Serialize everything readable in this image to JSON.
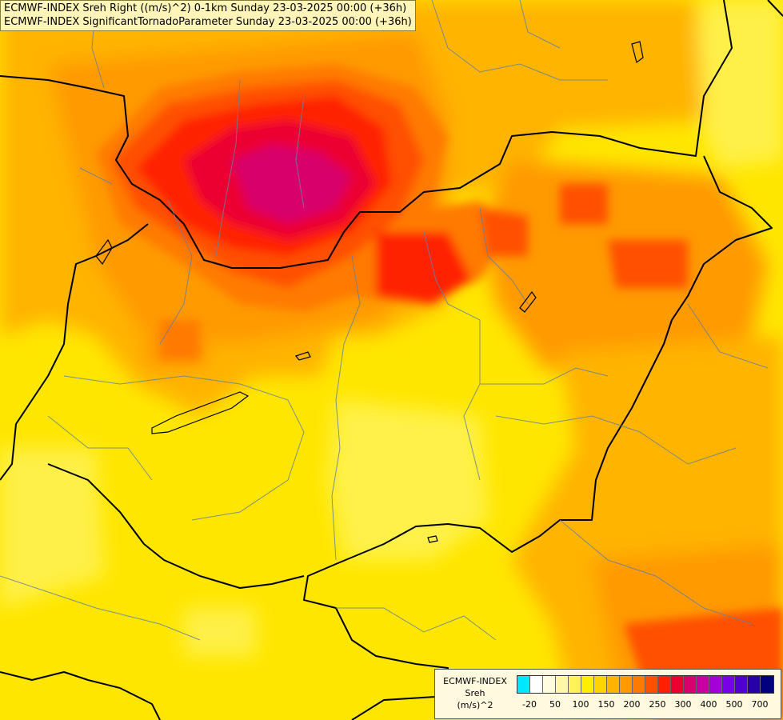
{
  "header": {
    "line1": "ECMWF-INDEX Sreh Right ((m/s)^2) 0-1km Sunday 23-03-2025 00:00 (+36h)",
    "line2": "ECMWF-INDEX SignificantTornadoParameter Sunday 23-03-2025 00:00 (+36h)"
  },
  "legend": {
    "line1": "ECMWF-INDEX",
    "line2": "Sreh",
    "line3": "(m/s)^2",
    "colors": [
      "#00e8ff",
      "#ffffff",
      "#fffce0",
      "#fff7a8",
      "#fff35a",
      "#ffee00",
      "#ffd400",
      "#ffb400",
      "#ff9a00",
      "#ff7a00",
      "#ff5000",
      "#ff2000",
      "#ec0030",
      "#d8006a",
      "#c800a0",
      "#a400d8",
      "#7a00e8",
      "#5000d0",
      "#2800a8",
      "#000080"
    ],
    "ticks": [
      "-20",
      "50",
      "100",
      "150",
      "200",
      "250",
      "300",
      "400",
      "500",
      "700"
    ]
  }
}
